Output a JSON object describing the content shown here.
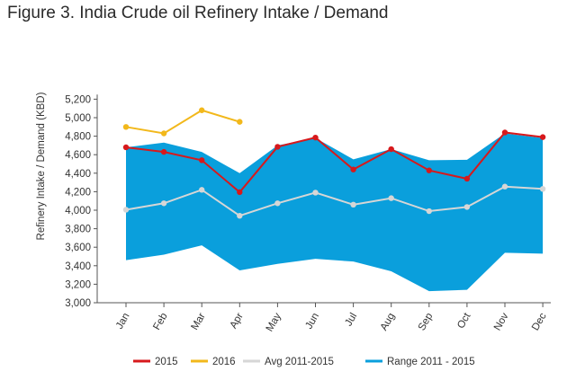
{
  "title": "Figure 3. India Crude oil Refinery Intake / Demand",
  "chart_data": {
    "type": "line",
    "title": "Figure 3. India Crude oil Refinery Intake / Demand",
    "xlabel": "",
    "ylabel": "Refinery Intake / Demand (KBD)",
    "categories": [
      "Jan",
      "Feb",
      "Mar",
      "Apr",
      "May",
      "Jun",
      "Jul",
      "Aug",
      "Sep",
      "Oct",
      "Nov",
      "Dec"
    ],
    "yticks": [
      "3,000",
      "3,200",
      "3,400",
      "3,600",
      "3,800",
      "4,000",
      "4,200",
      "4,400",
      "4,600",
      "4,800",
      "5,000",
      "5,200"
    ],
    "ylim": [
      3000,
      5300
    ],
    "grid": false,
    "legend_position": "bottom",
    "range": {
      "name": "Range 2011 - 2015",
      "color": "#0a9fdc",
      "low": [
        3460,
        3520,
        3620,
        3350,
        3420,
        3475,
        3445,
        3340,
        3125,
        3140,
        3540,
        3530
      ],
      "high": [
        4680,
        4730,
        4630,
        4400,
        4700,
        4780,
        4550,
        4660,
        4540,
        4545,
        4830,
        4780
      ]
    },
    "series": [
      {
        "name": "2015",
        "color": "#d7191c",
        "values": [
          4680,
          4630,
          4540,
          4195,
          4685,
          4785,
          4440,
          4660,
          4430,
          4340,
          4840,
          4790
        ]
      },
      {
        "name": "2016",
        "color": "#f2b81b",
        "values": [
          4900,
          4830,
          5080,
          4955,
          null,
          null,
          null,
          null,
          null,
          null,
          null,
          null
        ]
      },
      {
        "name": "Avg 2011-2015",
        "color": "#d6d6d6",
        "values": [
          4005,
          4075,
          4220,
          3940,
          4075,
          4190,
          4060,
          4130,
          3990,
          4035,
          4255,
          4230
        ]
      }
    ]
  }
}
